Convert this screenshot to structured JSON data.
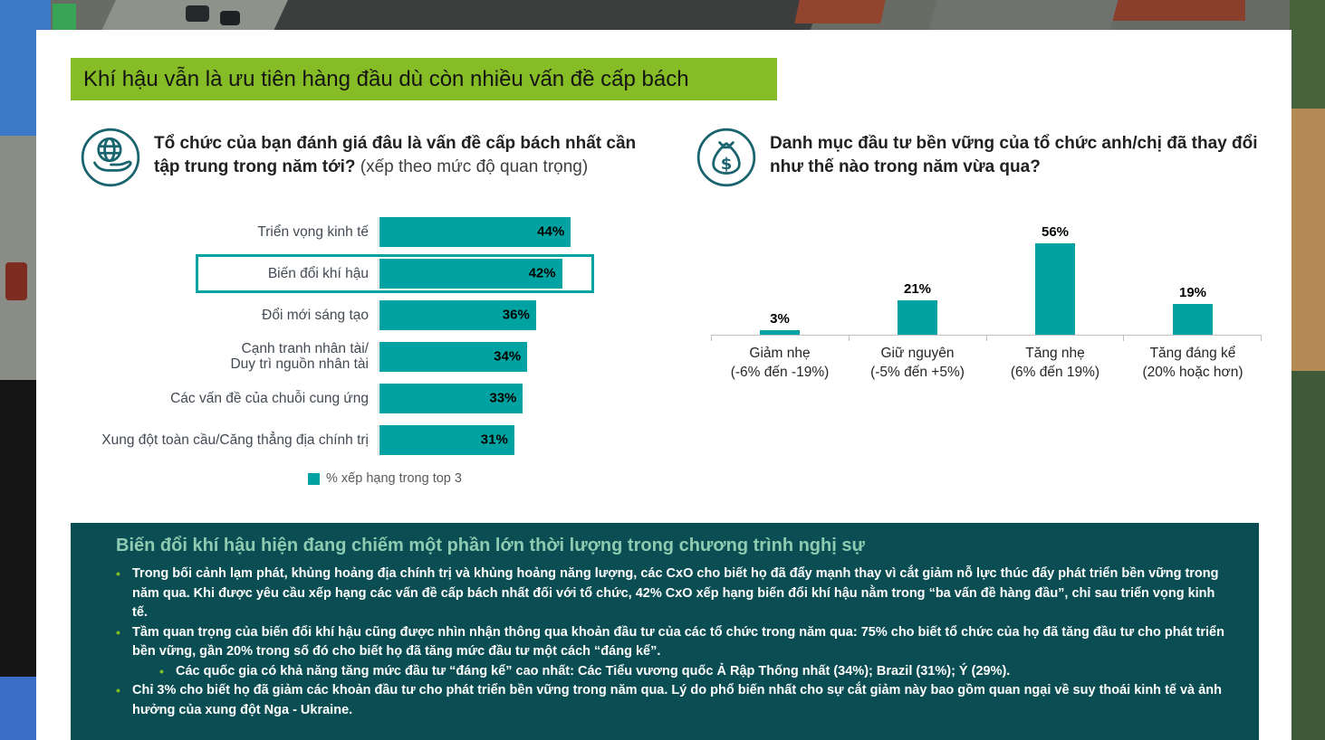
{
  "banner": {
    "title": "Khí hậu vẫn là ưu tiên hàng đầu dù còn nhiều vấn đề cấp bách"
  },
  "questions": {
    "left": {
      "icon": "globe-in-hand-icon",
      "bold": "Tổ chức của bạn đánh giá đâu là vấn đề cấp bách nhất cần tập trung trong năm tới?",
      "normal": " (xếp theo mức độ quan trọng)"
    },
    "right": {
      "icon": "money-bag-icon",
      "bold": "Danh mục đầu tư bền vững của tổ chức anh/chị đã thay đổi như thế nào trong năm vừa qua?"
    }
  },
  "chart_data": [
    {
      "type": "bar",
      "orientation": "horizontal",
      "title": "Tổ chức của bạn đánh giá đâu là vấn đề cấp bách nhất cần tập trung trong năm tới? (xếp theo mức độ quan trọng)",
      "categories": [
        "Triển vọng kinh tế",
        "Biến đổi khí hậu",
        "Đổi mới sáng tạo",
        "Cạnh tranh nhân tài/\nDuy trì nguồn nhân tài",
        "Các vấn đề của chuỗi cung ứng",
        "Xung đột toàn cầu/Căng thẳng địa chính trị"
      ],
      "values": [
        44,
        42,
        36,
        34,
        33,
        31
      ],
      "value_labels": [
        "44%",
        "42%",
        "36%",
        "34%",
        "33%",
        "31%"
      ],
      "highlighted_category": "Biến đổi khí hậu",
      "legend": [
        "% xếp hạng trong top 3"
      ],
      "legend_position": "bottom",
      "bar_color": "#00A3A1",
      "xlim": [
        0,
        48
      ],
      "grid": false
    },
    {
      "type": "bar",
      "orientation": "vertical",
      "title": "Danh mục đầu tư bền vững của tổ chức anh/chị đã thay đổi như thế nào trong năm vừa qua?",
      "categories": [
        "Giảm nhẹ\n(-6% đến -19%)",
        "Giữ nguyên\n(-5% đến +5%)",
        "Tăng nhẹ\n(6% đến 19%)",
        "Tăng đáng kể\n(20% hoặc hơn)"
      ],
      "values": [
        3,
        21,
        56,
        19
      ],
      "value_labels": [
        "3%",
        "21%",
        "56%",
        "19%"
      ],
      "bar_color": "#00A3A1",
      "ylim": [
        0,
        60
      ],
      "grid": false
    }
  ],
  "insight_box": {
    "title": "Biến đổi khí hậu hiện đang chiếm một phần lớn thời lượng trong chương trình nghị sự",
    "bullets": [
      {
        "text": "Trong bối cảnh lạm phát, khủng hoảng địa chính trị và khủng hoảng năng lượng, các CxO cho biết họ đã đẩy mạnh thay vì cắt giảm nỗ lực thúc đẩy phát triển bền vững trong năm qua. Khi được yêu cầu xếp hạng các vấn đề cấp bách nhất đối với tổ chức, 42% CxO xếp hạng biến đổi khí hậu nằm trong “ba vấn đề hàng đầu”, chỉ sau triển vọng kinh tế.",
        "sub": []
      },
      {
        "text": "Tầm quan trọng của biến đổi khí hậu cũng được nhìn nhận thông qua khoản đầu tư của các tổ chức trong năm qua: 75% cho biết tổ chức của họ đã tăng đầu tư cho phát triển bền vững, gần 20% trong số đó cho biết họ đã tăng mức đầu tư một cách “đáng kể”.",
        "sub": [
          "Các quốc gia có khả năng tăng mức đầu tư “đáng kể” cao nhất: Các Tiểu vương quốc Ả Rập Thống nhất (34%); Brazil (31%); Ý (29%)."
        ]
      },
      {
        "text": "Chỉ 3% cho biết họ đã giảm các khoản đầu tư cho phát triển bền vững trong năm qua. Lý do phổ biến nhất cho sự cắt giảm này bao gồm quan ngại về suy thoái kinh tế và ảnh hưởng của xung đột Nga - Ukraine.",
        "sub": []
      }
    ]
  },
  "colors": {
    "banner_green": "#86BC25",
    "bar_teal": "#00A3A1",
    "insight_box_bg": "#0A4E54",
    "insight_title": "#8ECBB1",
    "bullet_marker": "#86BC25",
    "icon_stroke": "#19646E"
  }
}
